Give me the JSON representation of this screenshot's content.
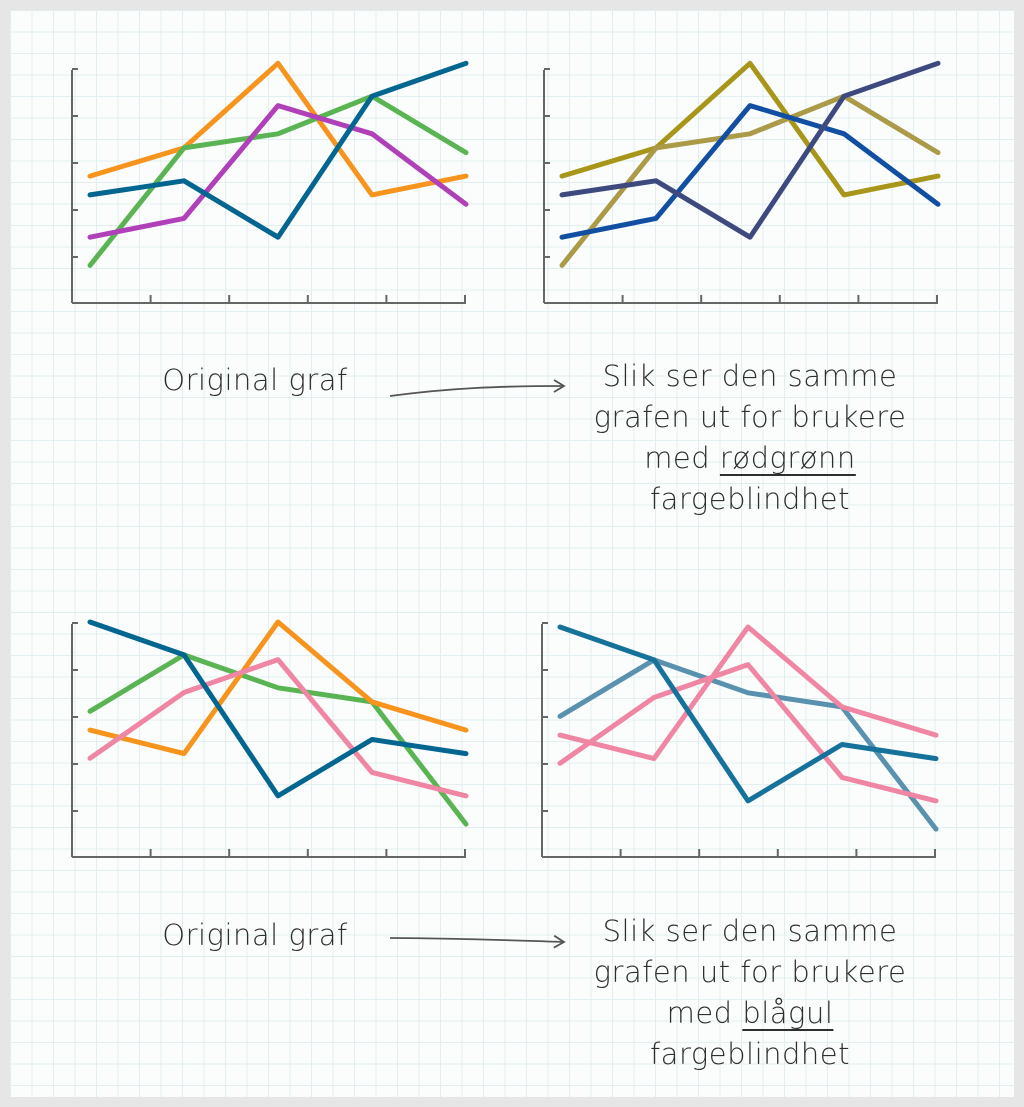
{
  "chart_data": [
    {
      "type": "line",
      "panel": "top-left",
      "x": [
        1,
        2,
        3,
        4,
        5
      ],
      "ylim": [
        0,
        5
      ],
      "grid": false,
      "series": [
        {
          "color": "#f7941d",
          "values": [
            2.7,
            3.3,
            5.1,
            2.3,
            2.7
          ]
        },
        {
          "color": "#5ab453",
          "values": [
            0.8,
            3.3,
            3.6,
            4.4,
            3.2
          ]
        },
        {
          "color": "#b040b8",
          "values": [
            1.4,
            1.8,
            4.2,
            3.6,
            2.1
          ]
        },
        {
          "color": "#026690",
          "values": [
            2.3,
            2.6,
            1.4,
            4.4,
            5.1
          ]
        }
      ]
    },
    {
      "type": "line",
      "panel": "top-right",
      "x": [
        1,
        2,
        3,
        4,
        5
      ],
      "ylim": [
        0,
        5
      ],
      "grid": false,
      "series": [
        {
          "color": "#a8961a",
          "values": [
            2.7,
            3.3,
            5.1,
            2.3,
            2.7
          ]
        },
        {
          "color": "#ab9a48",
          "values": [
            0.8,
            3.3,
            3.6,
            4.4,
            3.2
          ]
        },
        {
          "color": "#124fa2",
          "values": [
            1.4,
            1.8,
            4.2,
            3.6,
            2.1
          ]
        },
        {
          "color": "#3e4a7e",
          "values": [
            2.3,
            2.6,
            1.4,
            4.4,
            5.1
          ]
        }
      ]
    },
    {
      "type": "line",
      "panel": "bottom-left",
      "x": [
        1,
        2,
        3,
        4,
        5
      ],
      "ylim": [
        0,
        5
      ],
      "grid": false,
      "series": [
        {
          "color": "#5ab453",
          "values": [
            3.1,
            4.3,
            3.6,
            3.3,
            0.7
          ]
        },
        {
          "color": "#f7941d",
          "values": [
            2.7,
            2.2,
            5.0,
            3.3,
            2.7
          ]
        },
        {
          "color": "#ef86a3",
          "values": [
            2.1,
            3.5,
            4.2,
            1.8,
            1.3
          ]
        },
        {
          "color": "#026690",
          "values": [
            5.0,
            4.3,
            1.3,
            2.5,
            2.2
          ]
        }
      ]
    },
    {
      "type": "line",
      "panel": "bottom-right",
      "x": [
        1,
        2,
        3,
        4,
        5
      ],
      "ylim": [
        0,
        5
      ],
      "grid": false,
      "series": [
        {
          "color": "#5a91ae",
          "values": [
            3.1,
            4.3,
            3.6,
            3.3,
            0.7
          ]
        },
        {
          "color": "#ef86a3",
          "values": [
            2.7,
            2.2,
            5.0,
            3.3,
            2.7
          ]
        },
        {
          "color": "#ef86a3",
          "values": [
            2.1,
            3.5,
            4.2,
            1.8,
            1.3
          ]
        },
        {
          "color": "#16729a",
          "values": [
            5.0,
            4.3,
            1.3,
            2.5,
            2.2
          ]
        }
      ]
    }
  ],
  "top": {
    "left_label": "Original graf",
    "right_line1": "Slik ser den samme",
    "right_line2": "grafen ut for brukere",
    "right_line3_prefix": "med ",
    "right_line3_underlined": "rødgrønn",
    "right_line4": "fargeblindhet"
  },
  "bottom": {
    "left_label": "Original graf",
    "right_line1": "Slik ser den samme",
    "right_line2": "grafen ut for brukere",
    "right_line3_prefix": "med ",
    "right_line3_underlined": "blågul",
    "right_line4": "fargeblindhet"
  },
  "colors": {
    "axis": "#666666",
    "text": "#2e2e2e",
    "grid": "#e3eef0",
    "frame": "#e6e6e6"
  }
}
